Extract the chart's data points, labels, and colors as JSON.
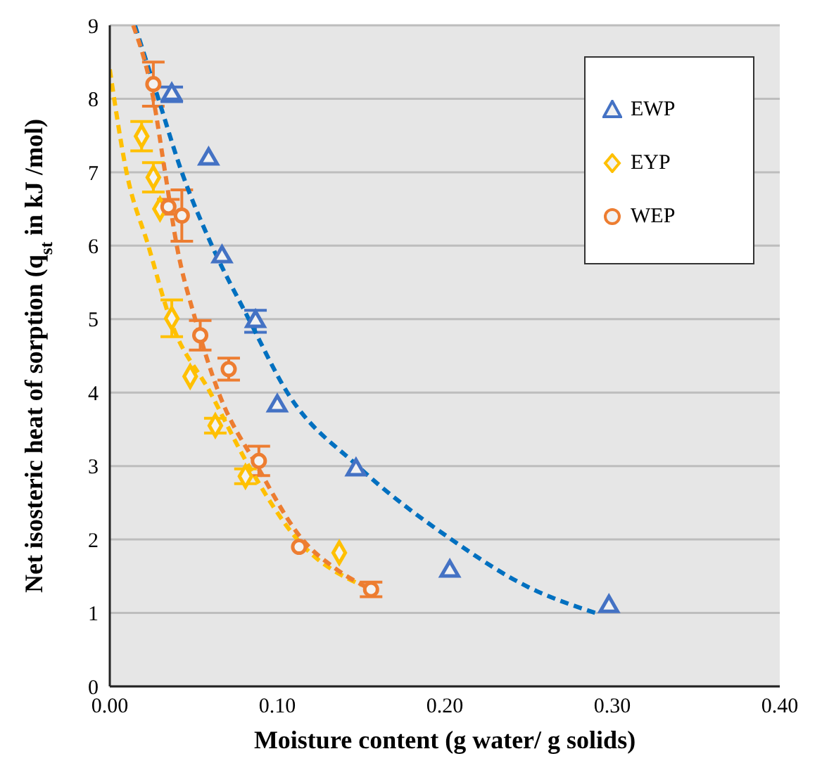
{
  "chart_data": {
    "type": "scatter",
    "xlabel": "Moisture content (g water/ g solids)",
    "ylabel": "Net isosteric heat of sorption (q$_{st}$ in kJ /mol)",
    "xlim": [
      0,
      0.4
    ],
    "xticks": [
      {
        "value": 0,
        "label": "0.00"
      },
      {
        "value": 0.1,
        "label": "0.10"
      },
      {
        "value": 0.2,
        "label": "0.20"
      },
      {
        "value": 0.3,
        "label": "0.30"
      },
      {
        "value": 0.4,
        "label": "0.40"
      }
    ],
    "ylim": [
      0,
      9
    ],
    "yticks": [
      0,
      1,
      2,
      3,
      4,
      5,
      6,
      7,
      8,
      9
    ],
    "grid": "y",
    "legend": "top right",
    "series": [
      {
        "name": "EWP",
        "marker": "triangle",
        "color": "#4472c4",
        "x": [
          0.037,
          0.059,
          0.067,
          0.087,
          0.1,
          0.147,
          0.203,
          0.298
        ],
        "values": [
          8.06,
          7.18,
          5.85,
          4.97,
          3.82,
          2.95,
          1.57,
          1.09
        ],
        "errors": [
          0.1,
          null,
          null,
          0.15,
          null,
          null,
          null,
          null
        ]
      },
      {
        "name": "EYP",
        "marker": "diamond",
        "color": "#ffc000",
        "x": [
          0.019,
          0.026,
          0.03,
          0.037,
          0.048,
          0.063,
          0.081,
          0.137
        ],
        "values": [
          7.49,
          6.93,
          6.5,
          5.01,
          4.22,
          3.55,
          2.86,
          1.82
        ],
        "errors": [
          0.2,
          0.2,
          null,
          0.25,
          null,
          0.1,
          0.1,
          null
        ]
      },
      {
        "name": "WEP",
        "marker": "circle",
        "color": "#ed7d31",
        "x": [
          0.026,
          0.035,
          0.043,
          0.054,
          0.071,
          0.089,
          0.113,
          0.156
        ],
        "values": [
          8.2,
          6.53,
          6.41,
          4.78,
          4.32,
          3.07,
          1.9,
          1.32
        ],
        "errors": [
          0.3,
          0.1,
          0.35,
          0.2,
          0.15,
          0.2,
          null,
          0.1
        ]
      },
      {
        "type": "line",
        "line_style": "dashed",
        "marker": "none",
        "color": "#0070c0",
        "x": [
          0.015,
          0.029,
          0.043,
          0.061,
          0.083,
          0.106,
          0.148,
          0.204,
          0.25,
          0.29
        ],
        "values": [
          9,
          8,
          7,
          6,
          5,
          4,
          3,
          2,
          1.35,
          1
        ]
      },
      {
        "type": "line",
        "line_style": "dashed",
        "marker": "none",
        "color": "#ffc000",
        "x": [
          0,
          0.01,
          0.023,
          0.036,
          0.06,
          0.083,
          0.112,
          0.15
        ],
        "values": [
          8.4,
          7,
          6,
          5,
          4,
          3,
          2,
          1.38
        ]
      },
      {
        "type": "line",
        "line_style": "dashed",
        "marker": "none",
        "color": "#ed7d31",
        "x": [
          0.014,
          0.026,
          0.033,
          0.04,
          0.051,
          0.065,
          0.088,
          0.115,
          0.135,
          0.155
        ],
        "values": [
          9,
          8,
          7,
          6,
          5,
          4,
          3,
          2,
          1.6,
          1.33
        ]
      }
    ]
  }
}
